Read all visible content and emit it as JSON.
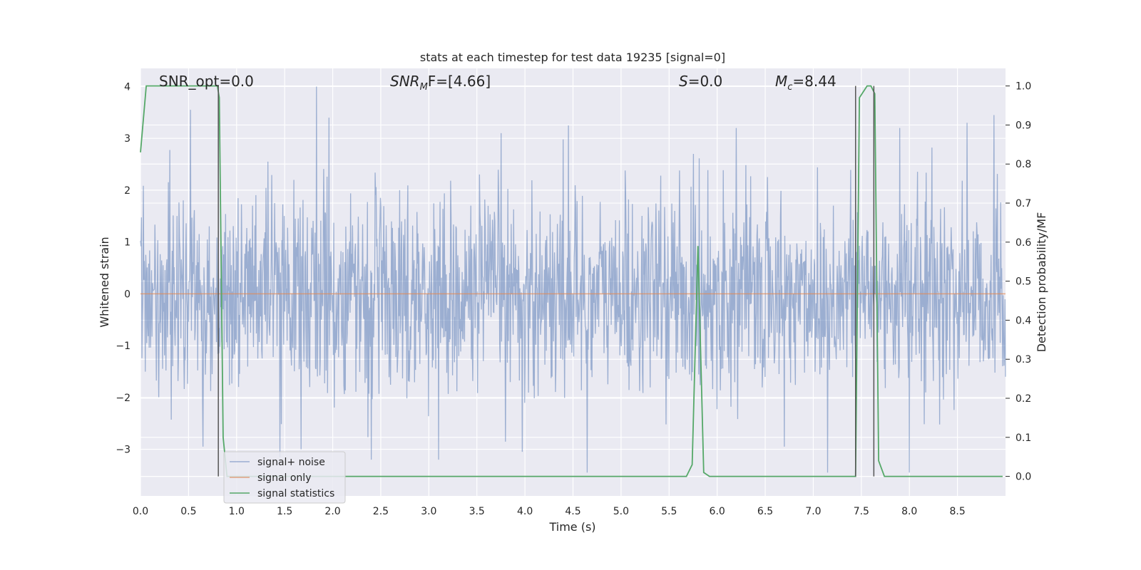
{
  "chart_data": {
    "type": "line",
    "title": "stats at each timestep for test data 19235 [signal=0]",
    "xlabel": "Time (s)",
    "ylabel": "Whitened strain",
    "ylabel_right": "Detection probability/MF",
    "xlim": [
      0.0,
      9.0
    ],
    "ylim": [
      -3.9,
      4.35
    ],
    "ylim_right": [
      -0.05,
      1.045
    ],
    "x_ticks": [
      "0.0",
      "0.5",
      "1.0",
      "1.5",
      "2.0",
      "2.5",
      "3.0",
      "3.5",
      "4.0",
      "4.5",
      "5.0",
      "5.5",
      "6.0",
      "6.5",
      "7.0",
      "7.5",
      "8.0",
      "8.5"
    ],
    "x_tick_values": [
      0.0,
      0.5,
      1.0,
      1.5,
      2.0,
      2.5,
      3.0,
      3.5,
      4.0,
      4.5,
      5.0,
      5.5,
      6.0,
      6.5,
      7.0,
      7.5,
      8.0,
      8.5
    ],
    "y_ticks": [
      "4",
      "3",
      "2",
      "1",
      "0",
      "−1",
      "−2",
      "−3"
    ],
    "y_tick_values": [
      4,
      3,
      2,
      1,
      0,
      -1,
      -2,
      -3
    ],
    "y_ticks_right": [
      "1.0",
      "0.9",
      "0.8",
      "0.7",
      "0.6",
      "0.5",
      "0.4",
      "0.3",
      "0.2",
      "0.1",
      "0.0"
    ],
    "y_tick_values_right": [
      1.0,
      0.9,
      0.8,
      0.7,
      0.6,
      0.5,
      0.4,
      0.3,
      0.2,
      0.1,
      0.0
    ],
    "grid": true,
    "legend_placement": "lower-left",
    "annotations": {
      "snr_opt": "SNR_opt=0.0",
      "snr_mf_main": "SNR",
      "snr_mf_sub": "M",
      "snr_mf_rest": "F=[4.66]",
      "s_main": "S",
      "s_rest": "=0.0",
      "mc_main": "M",
      "mc_sub": "c",
      "mc_rest": "=8.44"
    },
    "series": [
      {
        "name": "signal+ noise",
        "color": "#4c72b0",
        "axis": "left",
        "style": "noise",
        "t_end": 9.0,
        "n_samples": 1800,
        "envelope_core": 1.0,
        "peaks": [
          {
            "x": 0.52,
            "y": 3.55
          },
          {
            "x": 1.83,
            "y": 4.0
          },
          {
            "x": 1.96,
            "y": 3.4
          },
          {
            "x": 3.75,
            "y": 3.1
          },
          {
            "x": 4.45,
            "y": 3.25
          },
          {
            "x": 6.2,
            "y": 3.2
          },
          {
            "x": 7.9,
            "y": 3.2
          },
          {
            "x": 8.88,
            "y": 3.45
          },
          {
            "x": 8.6,
            "y": 3.3
          },
          {
            "x": 1.45,
            "y": -3.15
          },
          {
            "x": 2.4,
            "y": -3.2
          },
          {
            "x": 3.1,
            "y": -3.2
          },
          {
            "x": 4.65,
            "y": -3.45
          },
          {
            "x": 7.15,
            "y": -3.45
          },
          {
            "x": 8.0,
            "y": -3.45
          },
          {
            "x": 0.65,
            "y": -2.95
          },
          {
            "x": 3.97,
            "y": -3.05
          },
          {
            "x": 6.7,
            "y": -2.95
          }
        ]
      },
      {
        "name": "signal only",
        "color": "#dd8452",
        "axis": "left",
        "x": [
          0.0,
          9.0
        ],
        "y": [
          0.0,
          0.0
        ]
      },
      {
        "name": "signal statistics",
        "color": "#55a868",
        "axis": "right",
        "x": [
          0.0,
          0.06,
          0.12,
          0.18,
          0.24,
          0.3,
          0.4,
          0.5,
          0.6,
          0.7,
          0.76,
          0.8,
          0.82,
          0.86,
          0.9,
          0.94,
          1.0,
          5.5,
          5.68,
          5.74,
          5.8,
          5.86,
          5.92,
          6.0,
          7.42,
          7.44,
          7.48,
          7.56,
          7.6,
          7.64,
          7.68,
          7.74,
          7.8,
          8.97
        ],
        "y": [
          0.83,
          1.0,
          1.0,
          1.0,
          1.0,
          1.0,
          1.0,
          1.0,
          1.0,
          1.0,
          1.0,
          1.0,
          0.97,
          0.1,
          0.0,
          0.0,
          0.0,
          0.0,
          0.0,
          0.03,
          0.59,
          0.01,
          0.0,
          0.0,
          0.0,
          0.0,
          0.97,
          1.0,
          1.0,
          0.98,
          0.04,
          0.0,
          0.0,
          0.0
        ]
      }
    ],
    "vertical_lines": [
      0.81,
      7.44,
      7.63
    ],
    "legend": [
      "signal+ noise",
      "signal only",
      "signal statistics"
    ]
  }
}
